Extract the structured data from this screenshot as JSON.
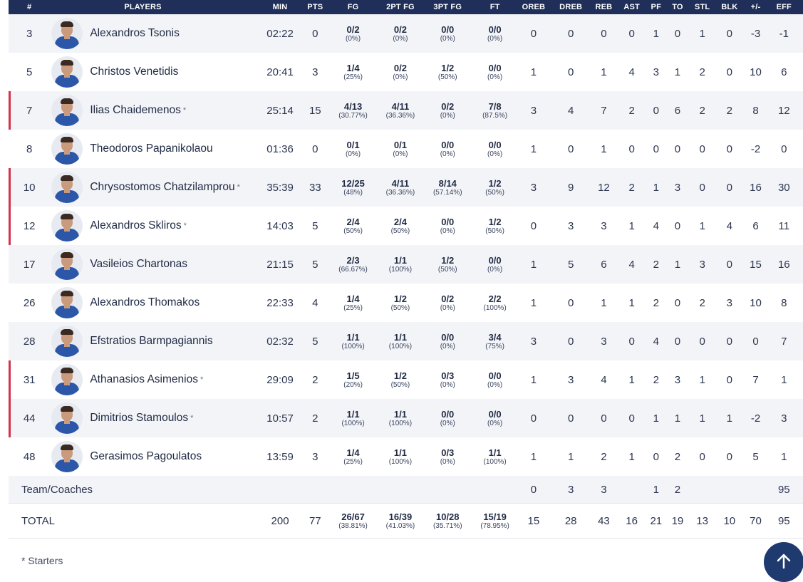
{
  "headers": [
    "#",
    "PLAYERS",
    "MIN",
    "PTS",
    "FG",
    "2PT FG",
    "3PT FG",
    "FT",
    "OREB",
    "DREB",
    "REB",
    "AST",
    "PF",
    "TO",
    "STL",
    "BLK",
    "+/-",
    "EFF"
  ],
  "players": [
    {
      "num": "3",
      "name": "Alexandros Tsonis",
      "star": "",
      "min": "02:22",
      "pts": "0",
      "fg": "0/2",
      "fgp": "(0%)",
      "p2": "0/2",
      "p2p": "(0%)",
      "p3": "0/0",
      "p3p": "(0%)",
      "ft": "0/0",
      "ftp": "(0%)",
      "oreb": "0",
      "dreb": "0",
      "reb": "0",
      "ast": "0",
      "pf": "1",
      "to": "0",
      "stl": "1",
      "blk": "0",
      "pm": "-3",
      "eff": "-1"
    },
    {
      "num": "5",
      "name": "Christos Venetidis",
      "star": "",
      "min": "20:41",
      "pts": "3",
      "fg": "1/4",
      "fgp": "(25%)",
      "p2": "0/2",
      "p2p": "(0%)",
      "p3": "1/2",
      "p3p": "(50%)",
      "ft": "0/0",
      "ftp": "(0%)",
      "oreb": "1",
      "dreb": "0",
      "reb": "1",
      "ast": "4",
      "pf": "3",
      "to": "1",
      "stl": "2",
      "blk": "0",
      "pm": "10",
      "eff": "6"
    },
    {
      "num": "7",
      "name": "Ilias Chaidemenos",
      "star": "*",
      "min": "25:14",
      "pts": "15",
      "fg": "4/13",
      "fgp": "(30.77%)",
      "p2": "4/11",
      "p2p": "(36.36%)",
      "p3": "0/2",
      "p3p": "(0%)",
      "ft": "7/8",
      "ftp": "(87.5%)",
      "oreb": "3",
      "dreb": "4",
      "reb": "7",
      "ast": "2",
      "pf": "0",
      "to": "6",
      "stl": "2",
      "blk": "2",
      "pm": "8",
      "eff": "12"
    },
    {
      "num": "8",
      "name": "Theodoros Papanikolaou",
      "star": "",
      "min": "01:36",
      "pts": "0",
      "fg": "0/1",
      "fgp": "(0%)",
      "p2": "0/1",
      "p2p": "(0%)",
      "p3": "0/0",
      "p3p": "(0%)",
      "ft": "0/0",
      "ftp": "(0%)",
      "oreb": "1",
      "dreb": "0",
      "reb": "1",
      "ast": "0",
      "pf": "0",
      "to": "0",
      "stl": "0",
      "blk": "0",
      "pm": "-2",
      "eff": "0"
    },
    {
      "num": "10",
      "name": "Chrysostomos Chatzilamprou",
      "star": "*",
      "min": "35:39",
      "pts": "33",
      "fg": "12/25",
      "fgp": "(48%)",
      "p2": "4/11",
      "p2p": "(36.36%)",
      "p3": "8/14",
      "p3p": "(57.14%)",
      "ft": "1/2",
      "ftp": "(50%)",
      "oreb": "3",
      "dreb": "9",
      "reb": "12",
      "ast": "2",
      "pf": "1",
      "to": "3",
      "stl": "0",
      "blk": "0",
      "pm": "16",
      "eff": "30"
    },
    {
      "num": "12",
      "name": "Alexandros Skliros",
      "star": "*",
      "min": "14:03",
      "pts": "5",
      "fg": "2/4",
      "fgp": "(50%)",
      "p2": "2/4",
      "p2p": "(50%)",
      "p3": "0/0",
      "p3p": "(0%)",
      "ft": "1/2",
      "ftp": "(50%)",
      "oreb": "0",
      "dreb": "3",
      "reb": "3",
      "ast": "1",
      "pf": "4",
      "to": "0",
      "stl": "1",
      "blk": "4",
      "pm": "6",
      "eff": "11"
    },
    {
      "num": "17",
      "name": "Vasileios Chartonas",
      "star": "",
      "min": "21:15",
      "pts": "5",
      "fg": "2/3",
      "fgp": "(66.67%)",
      "p2": "1/1",
      "p2p": "(100%)",
      "p3": "1/2",
      "p3p": "(50%)",
      "ft": "0/0",
      "ftp": "(0%)",
      "oreb": "1",
      "dreb": "5",
      "reb": "6",
      "ast": "4",
      "pf": "2",
      "to": "1",
      "stl": "3",
      "blk": "0",
      "pm": "15",
      "eff": "16"
    },
    {
      "num": "26",
      "name": "Alexandros Thomakos",
      "star": "",
      "min": "22:33",
      "pts": "4",
      "fg": "1/4",
      "fgp": "(25%)",
      "p2": "1/2",
      "p2p": "(50%)",
      "p3": "0/2",
      "p3p": "(0%)",
      "ft": "2/2",
      "ftp": "(100%)",
      "oreb": "1",
      "dreb": "0",
      "reb": "1",
      "ast": "1",
      "pf": "2",
      "to": "0",
      "stl": "2",
      "blk": "3",
      "pm": "10",
      "eff": "8"
    },
    {
      "num": "28",
      "name": "Efstratios Barmpagiannis",
      "star": "",
      "min": "02:32",
      "pts": "5",
      "fg": "1/1",
      "fgp": "(100%)",
      "p2": "1/1",
      "p2p": "(100%)",
      "p3": "0/0",
      "p3p": "(0%)",
      "ft": "3/4",
      "ftp": "(75%)",
      "oreb": "3",
      "dreb": "0",
      "reb": "3",
      "ast": "0",
      "pf": "4",
      "to": "0",
      "stl": "0",
      "blk": "0",
      "pm": "0",
      "eff": "7"
    },
    {
      "num": "31",
      "name": "Athanasios Asimenios",
      "star": "*",
      "min": "29:09",
      "pts": "2",
      "fg": "1/5",
      "fgp": "(20%)",
      "p2": "1/2",
      "p2p": "(50%)",
      "p3": "0/3",
      "p3p": "(0%)",
      "ft": "0/0",
      "ftp": "(0%)",
      "oreb": "1",
      "dreb": "3",
      "reb": "4",
      "ast": "1",
      "pf": "2",
      "to": "3",
      "stl": "1",
      "blk": "0",
      "pm": "7",
      "eff": "1"
    },
    {
      "num": "44",
      "name": "Dimitrios Stamoulos",
      "star": "*",
      "min": "10:57",
      "pts": "2",
      "fg": "1/1",
      "fgp": "(100%)",
      "p2": "1/1",
      "p2p": "(100%)",
      "p3": "0/0",
      "p3p": "(0%)",
      "ft": "0/0",
      "ftp": "(0%)",
      "oreb": "0",
      "dreb": "0",
      "reb": "0",
      "ast": "0",
      "pf": "1",
      "to": "1",
      "stl": "1",
      "blk": "1",
      "pm": "-2",
      "eff": "3"
    },
    {
      "num": "48",
      "name": "Gerasimos Pagoulatos",
      "star": "",
      "min": "13:59",
      "pts": "3",
      "fg": "1/4",
      "fgp": "(25%)",
      "p2": "1/1",
      "p2p": "(100%)",
      "p3": "0/3",
      "p3p": "(0%)",
      "ft": "1/1",
      "ftp": "(100%)",
      "oreb": "1",
      "dreb": "1",
      "reb": "2",
      "ast": "1",
      "pf": "0",
      "to": "2",
      "stl": "0",
      "blk": "0",
      "pm": "5",
      "eff": "1"
    }
  ],
  "team": {
    "label": "Team/Coaches",
    "oreb": "0",
    "dreb": "3",
    "reb": "3",
    "pf": "1",
    "to": "2",
    "eff": "95"
  },
  "total": {
    "label": "TOTAL",
    "min": "200",
    "pts": "77",
    "fg": "26/67",
    "fgp": "(38.81%)",
    "p2": "16/39",
    "p2p": "(41.03%)",
    "p3": "10/28",
    "p3p": "(35.71%)",
    "ft": "15/19",
    "ftp": "(78.95%)",
    "oreb": "15",
    "dreb": "28",
    "reb": "43",
    "ast": "16",
    "pf": "21",
    "to": "19",
    "stl": "13",
    "blk": "10",
    "pm": "70",
    "eff": "95"
  },
  "footnote": "* Starters",
  "colors": {
    "header_bg": "#1f2f5a",
    "starter_bar": "#d2334c",
    "row_alt": "#f3f4f7",
    "scroll_btn": "#1f3a6e"
  },
  "icons": {
    "scroll_top": "arrow-up-icon",
    "avatar": "player-avatar"
  }
}
